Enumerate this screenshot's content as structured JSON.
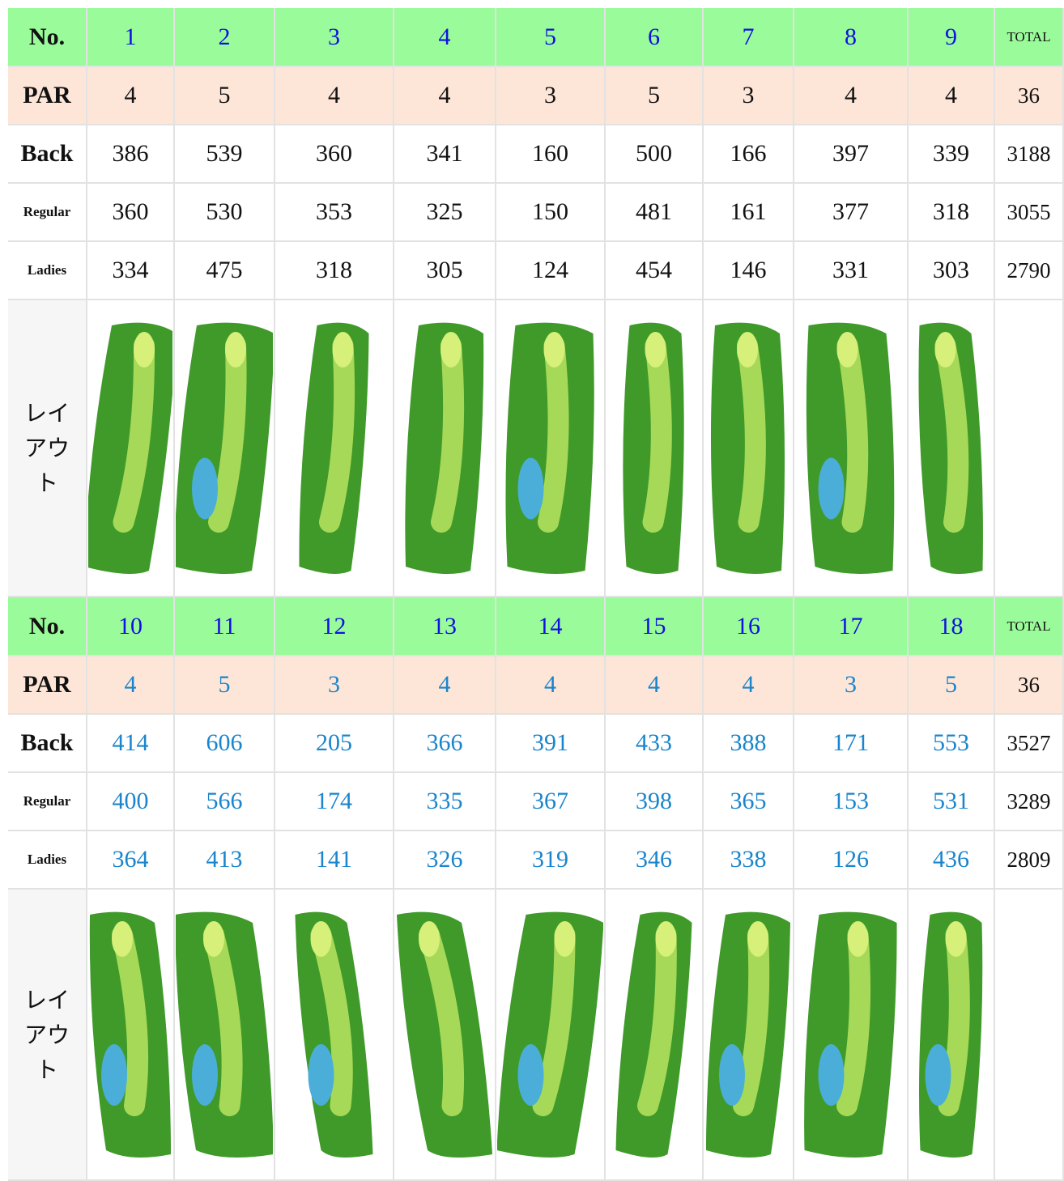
{
  "sections": [
    {
      "header": {
        "label": "No.",
        "holes": [
          1,
          2,
          3,
          4,
          5,
          6,
          7,
          8,
          9
        ],
        "total": "TOTAL"
      },
      "rows": [
        {
          "label": "PAR",
          "values": [
            4,
            5,
            4,
            4,
            3,
            5,
            3,
            4,
            4
          ],
          "total": 36
        },
        {
          "label": "Back",
          "values": [
            386,
            539,
            360,
            341,
            160,
            500,
            166,
            397,
            339
          ],
          "total": 3188
        },
        {
          "label": "Regular",
          "values": [
            360,
            530,
            353,
            325,
            150,
            481,
            161,
            377,
            318
          ],
          "total": 3055
        },
        {
          "label": "Ladies",
          "values": [
            334,
            475,
            318,
            305,
            124,
            454,
            146,
            331,
            303
          ],
          "total": 2790
        }
      ],
      "layout_label": "レイアウト"
    },
    {
      "header": {
        "label": "No.",
        "holes": [
          10,
          11,
          12,
          13,
          14,
          15,
          16,
          17,
          18
        ],
        "total": "TOTAL"
      },
      "rows": [
        {
          "label": "PAR",
          "values": [
            4,
            5,
            3,
            4,
            4,
            4,
            4,
            3,
            5
          ],
          "total": 36
        },
        {
          "label": "Back",
          "values": [
            414,
            606,
            205,
            366,
            391,
            433,
            388,
            171,
            553
          ],
          "total": 3527
        },
        {
          "label": "Regular",
          "values": [
            400,
            566,
            174,
            335,
            367,
            398,
            365,
            153,
            531
          ],
          "total": 3289
        },
        {
          "label": "Ladies",
          "values": [
            364,
            413,
            141,
            326,
            319,
            346,
            338,
            126,
            436
          ],
          "total": 2809
        }
      ],
      "layout_label": "レイアウト"
    }
  ]
}
